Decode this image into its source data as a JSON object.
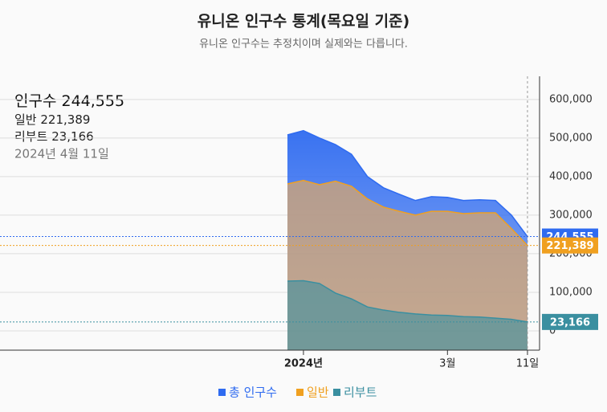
{
  "chart_data": {
    "type": "area",
    "title": "유니온 인구수 통계(목요일 기준)",
    "subtitle": "유니온 인구수는 추정치이며 실제와는 다릅니다.",
    "categories": [
      null,
      "2024년",
      null,
      null,
      null,
      null,
      null,
      null,
      null,
      null,
      "3월",
      null,
      null,
      null,
      null,
      "11일"
    ],
    "series": [
      {
        "name": "총 인구수",
        "color": "#2f6bf0",
        "values": [
          508000,
          519000,
          500000,
          483000,
          458000,
          400000,
          371000,
          354000,
          338000,
          348000,
          346000,
          338000,
          340000,
          338000,
          300000,
          244555
        ],
        "value_labels": [
          null,
          null,
          null,
          null,
          null,
          null,
          null,
          null,
          null,
          null,
          null,
          null,
          null,
          null,
          null,
          "244,555"
        ]
      },
      {
        "name": "일반",
        "color": "#f0a020",
        "values": [
          381000,
          390000,
          379000,
          388000,
          375000,
          342000,
          321000,
          310000,
          300000,
          310000,
          310000,
          304000,
          306000,
          306000,
          265000,
          221389
        ],
        "value_labels": [
          null,
          null,
          null,
          null,
          null,
          null,
          null,
          null,
          null,
          null,
          null,
          null,
          null,
          null,
          null,
          "221,389"
        ]
      },
      {
        "name": "리부트",
        "color": "#3a8fa0",
        "values": [
          129000,
          130000,
          123000,
          98000,
          83000,
          62000,
          54000,
          48000,
          44000,
          41000,
          40000,
          37000,
          36000,
          33000,
          30000,
          23166
        ],
        "value_labels": [
          null,
          null,
          null,
          null,
          null,
          null,
          null,
          null,
          null,
          null,
          null,
          null,
          null,
          null,
          null,
          "23,166"
        ]
      }
    ],
    "info": {
      "total_label": "인구수",
      "date": "2024년 4월 11일"
    },
    "ylim": [
      -50000,
      660000
    ],
    "yticks": [
      0,
      {
        "value": 100000,
        "label": "100,000"
      },
      {
        "value": 200000,
        "label": "200,000"
      },
      {
        "value": 300000,
        "label": "300,000"
      },
      {
        "value": 400000,
        "label": "400,000"
      },
      {
        "value": 500000,
        "label": "500,000"
      },
      {
        "value": 600000,
        "label": "600,000"
      }
    ],
    "grid": true
  }
}
